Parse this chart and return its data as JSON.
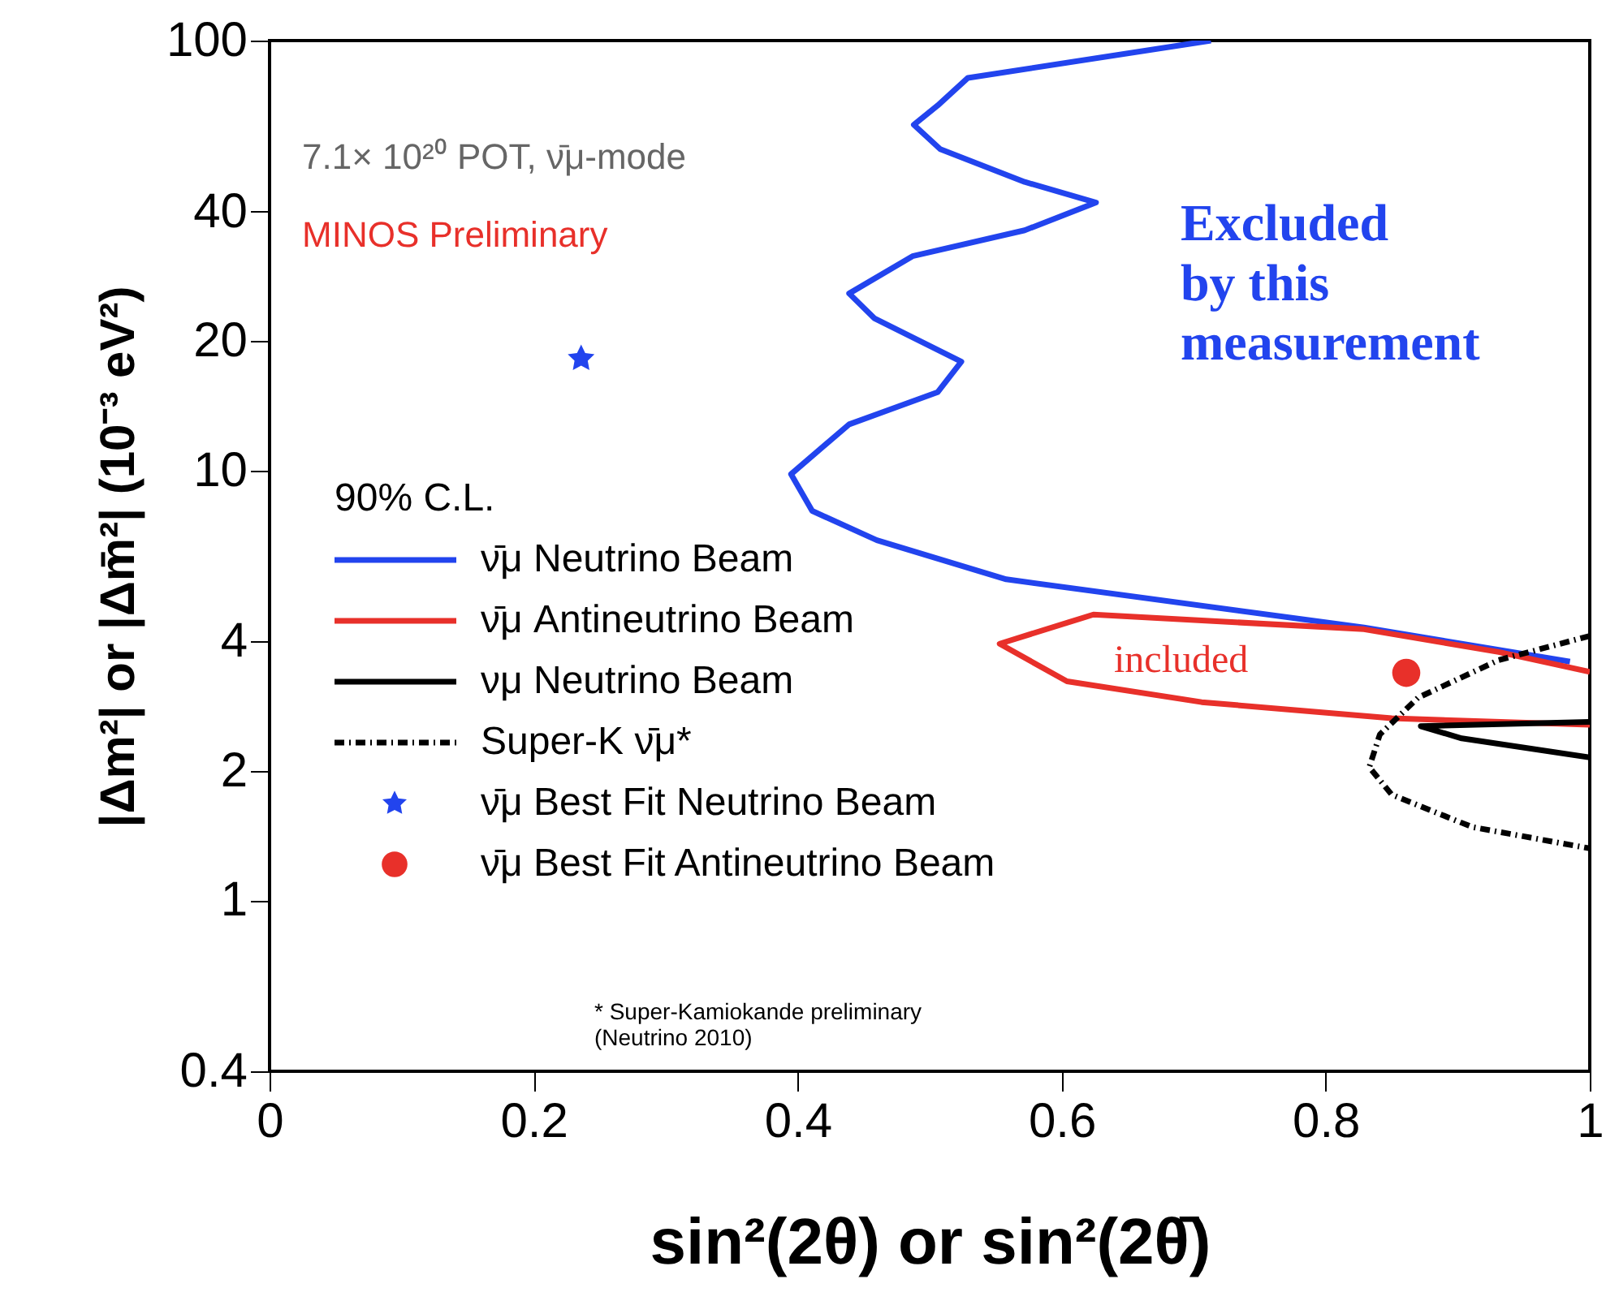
{
  "chart_data": {
    "type": "line",
    "xlabel": "sin²(2θ) or sin²(2θ̄)",
    "ylabel": "|Δm²| or |Δm̄²| (10⁻³ eV²)",
    "legend_title": "90% C.L.",
    "xlim": [
      0,
      1
    ],
    "xticks": [
      0,
      0.2,
      0.4,
      0.6,
      0.8,
      1
    ],
    "ylim": [
      0.4,
      100
    ],
    "yticks": [
      0.4,
      1,
      2,
      4,
      10,
      20,
      40,
      100
    ],
    "log": "y",
    "grid": false,
    "legend": "bottom left",
    "series": [
      {
        "name": "ν̄μ Neutrino Beam",
        "color": "#2244ee",
        "line_style": "solid",
        "x": [
          0.713,
          0.529,
          0.506,
          0.488,
          0.508,
          0.572,
          0.626,
          0.572,
          0.487,
          0.439,
          0.458,
          0.524,
          0.506,
          0.439,
          0.395,
          0.411,
          0.46,
          0.558,
          0.829,
          0.985
        ],
        "values": [
          100,
          81.9,
          70.6,
          63.7,
          55.9,
          46.9,
          42,
          36.2,
          31.5,
          25.8,
          22.6,
          17.9,
          15.2,
          12.8,
          9.8,
          8.05,
          6.88,
          5.58,
          4.31,
          3.59
        ]
      },
      {
        "name": "ν̄μ Antineutrino Beam",
        "color": "#e8302a",
        "line_style": "solid",
        "x": [
          1.0,
          0.931,
          0.829,
          0.624,
          0.553,
          0.604,
          0.706,
          0.85,
          1.0
        ],
        "values": [
          3.4,
          3.78,
          4.27,
          4.62,
          3.95,
          3.23,
          2.89,
          2.65,
          2.56
        ]
      },
      {
        "name": "νμ Neutrino Beam",
        "color": "#000000",
        "line_style": "solid",
        "x": [
          1.0,
          0.872,
          0.903,
          1.0
        ],
        "values": [
          2.6,
          2.54,
          2.38,
          2.15
        ]
      },
      {
        "name": "Super-K ν̄μ*",
        "color": "#000000",
        "line_style": "dashed",
        "x": [
          1.0,
          0.931,
          0.87,
          0.841,
          0.833,
          0.85,
          0.911,
          1.0
        ],
        "values": [
          4.12,
          3.62,
          2.96,
          2.43,
          2.04,
          1.76,
          1.48,
          1.32
        ]
      },
      {
        "name": "ν̄μ Best Fit Neutrino Beam",
        "type": "scatter",
        "marker": "star",
        "color": "#2244ee",
        "x": [
          0.236
        ],
        "values": [
          18.2
        ]
      },
      {
        "name": "ν̄μ Best Fit Antineutrino Beam",
        "type": "scatter",
        "marker": "circle",
        "color": "#e8302a",
        "x": [
          0.861
        ],
        "values": [
          3.38
        ]
      }
    ],
    "annotations": [
      "Excluded\nby this\nmeasurement",
      "included",
      "7.1× 10²⁰ POT, ν̄μ-mode",
      "MINOS Preliminary",
      "* Super-Kamiokande preliminary\n(Neutrino 2010)"
    ]
  }
}
